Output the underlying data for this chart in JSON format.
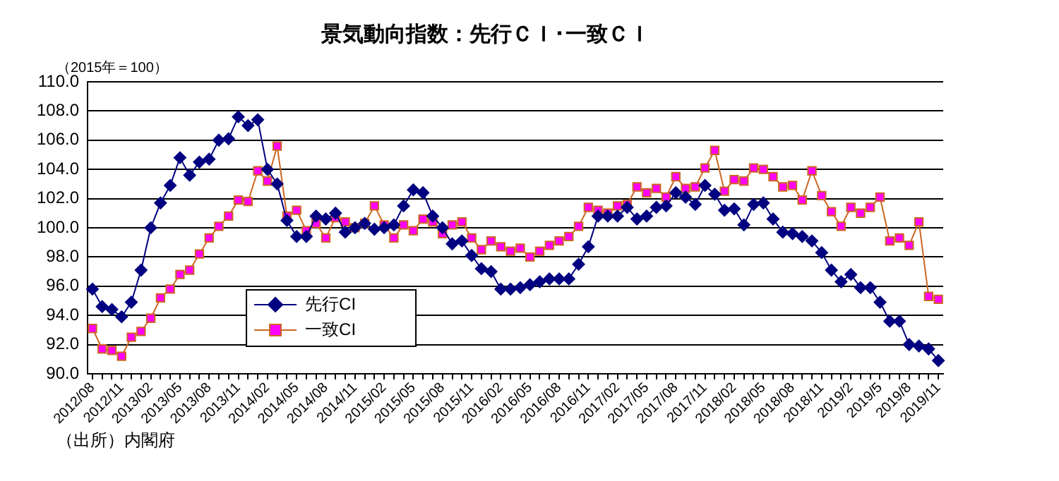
{
  "chart_data": {
    "type": "line",
    "title": "景気動向指数：先行ＣＩ･一致ＣＩ",
    "ylabel": "（2015年＝100）",
    "annotations": [
      "（出所）内閣府"
    ],
    "categories": [
      "2012/08",
      null,
      null,
      "2012/11",
      null,
      null,
      "2013/02",
      null,
      null,
      "2013/05",
      null,
      null,
      "2013/08",
      null,
      null,
      "2013/11",
      null,
      null,
      "2014/02",
      null,
      null,
      "2014/05",
      null,
      null,
      "2014/08",
      null,
      null,
      "2014/11",
      null,
      null,
      "2015/02",
      null,
      null,
      "2015/05",
      null,
      null,
      "2015/08",
      null,
      null,
      "2015/11",
      null,
      null,
      "2016/02",
      null,
      null,
      "2016/05",
      null,
      null,
      "2016/08",
      null,
      null,
      "2016/11",
      null,
      null,
      "2017/02",
      null,
      null,
      "2017/05",
      null,
      null,
      "2017/08",
      null,
      null,
      "2017/11",
      null,
      null,
      "2018/02",
      null,
      null,
      "2018/05",
      null,
      null,
      "2018/08",
      null,
      null,
      "2018/11",
      null,
      null,
      "2019/2",
      null,
      null,
      "2019/5",
      null,
      null,
      "2019/8",
      null,
      null,
      "2019/11"
    ],
    "series": [
      {
        "name": "先行CI",
        "color": "#000080",
        "marker": "diamond",
        "values": [
          95.8,
          94.6,
          94.4,
          93.9,
          94.9,
          97.1,
          100.0,
          101.7,
          102.9,
          104.8,
          103.6,
          104.5,
          104.7,
          106.0,
          106.1,
          107.6,
          107.0,
          107.4,
          104.0,
          103.0,
          100.5,
          99.4,
          99.4,
          100.8,
          100.6,
          101.0,
          99.7,
          100.0,
          100.3,
          99.9,
          100.0,
          100.2,
          101.5,
          102.6,
          102.4,
          100.8,
          100.0,
          98.9,
          99.1,
          98.1,
          97.2,
          97.0,
          95.8,
          95.8,
          95.9,
          96.1,
          96.3,
          96.5,
          96.5,
          96.5,
          97.5,
          98.7,
          100.8,
          100.8,
          100.8,
          101.4,
          100.6,
          100.8,
          101.4,
          101.5,
          102.4,
          102.1,
          101.6,
          102.9,
          102.3,
          101.2,
          101.3,
          100.2,
          101.6,
          101.7,
          100.6,
          99.7,
          99.6,
          99.4,
          99.1,
          98.3,
          97.1,
          96.3,
          96.8,
          95.9,
          95.9,
          94.9,
          93.6,
          93.6,
          92.0,
          91.9,
          91.7,
          90.9
        ]
      },
      {
        "name": "一致CI",
        "color": "#ff00ff",
        "marker": "square",
        "values": [
          93.1,
          91.7,
          91.6,
          91.2,
          92.5,
          92.9,
          93.8,
          95.2,
          95.8,
          96.8,
          97.1,
          98.2,
          99.3,
          100.1,
          100.8,
          101.9,
          101.8,
          103.9,
          103.2,
          105.6,
          100.8,
          101.2,
          99.8,
          100.3,
          99.3,
          100.7,
          100.4,
          100.0,
          100.3,
          101.5,
          100.2,
          99.3,
          100.2,
          99.8,
          100.6,
          100.4,
          99.6,
          100.2,
          100.4,
          99.3,
          98.5,
          99.1,
          98.7,
          98.4,
          98.6,
          98.0,
          98.4,
          98.8,
          99.1,
          99.4,
          100.1,
          101.4,
          101.2,
          101.0,
          101.5,
          101.6,
          102.8,
          102.4,
          102.7,
          102.1,
          103.5,
          102.7,
          102.8,
          104.1,
          105.3,
          102.5,
          103.3,
          103.2,
          104.1,
          104.0,
          103.5,
          102.8,
          102.9,
          101.9,
          103.9,
          102.2,
          101.1,
          100.1,
          101.4,
          101.0,
          101.4,
          102.1,
          99.1,
          99.3,
          98.8,
          100.4,
          95.3,
          95.1
        ]
      }
    ],
    "ylim": [
      90,
      110
    ],
    "yticks": [
      {
        "value": 90,
        "label": "90.0"
      },
      {
        "value": 92,
        "label": "92.0"
      },
      {
        "value": 94,
        "label": "94.0"
      },
      {
        "value": 96,
        "label": "96.0"
      },
      {
        "value": 98,
        "label": "98.0"
      },
      {
        "value": 100,
        "label": "100.0"
      },
      {
        "value": 102,
        "label": "102.0"
      },
      {
        "value": 104,
        "label": "104.0"
      },
      {
        "value": 106,
        "label": "106.0"
      },
      {
        "value": 108,
        "label": "108.0"
      },
      {
        "value": 110,
        "label": "110.0"
      }
    ],
    "grid": "y",
    "legend": "bottom left"
  }
}
